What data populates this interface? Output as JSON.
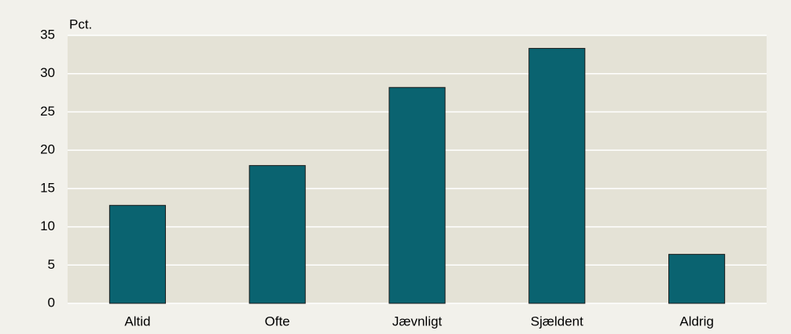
{
  "chart_data": {
    "type": "bar",
    "y_label": "Pct.",
    "categories": [
      "Altid",
      "Ofte",
      "Jævnligt",
      "Sjældent",
      "Aldrig"
    ],
    "values": [
      12.8,
      18,
      28.2,
      33.3,
      6.4
    ],
    "color": "#0a6370",
    "ylim": [
      0,
      35
    ],
    "yticks": [
      0,
      5,
      10,
      15,
      20,
      25,
      30,
      35
    ],
    "grid": true
  }
}
